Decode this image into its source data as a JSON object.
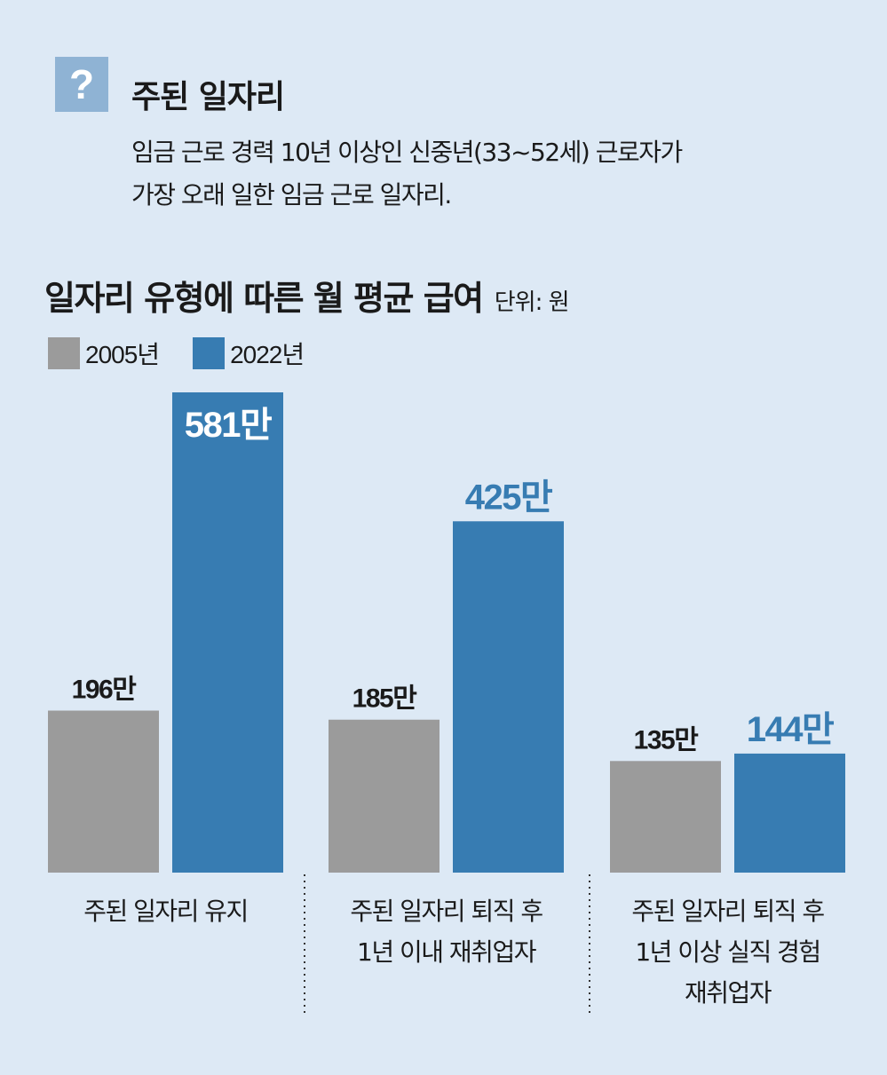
{
  "definition": {
    "icon": "question-mark-icon",
    "icon_glyph": "?",
    "title": "주된 일자리",
    "lines": [
      "임금 근로 경력 10년 이상인 신중년(33~52세) 근로자가",
      "가장 오래 일한 임금 근로 일자리."
    ]
  },
  "chart_data": {
    "type": "bar",
    "title": "일자리 유형에 따른 월 평균 급여",
    "unit_label": "단위: 원",
    "ylim": [
      0,
      5810000
    ],
    "grid": false,
    "legend_placement": "top-left",
    "categories": [
      [
        "주된 일자리 유지"
      ],
      [
        "주된 일자리 퇴직 후",
        "1년 이내 재취업자"
      ],
      [
        "주된 일자리 퇴직 후",
        "1년 이상 실직 경험",
        "재취업자"
      ]
    ],
    "series": [
      {
        "name": "2005년",
        "color": "#9b9b9b",
        "label_color": "#1a1a1a",
        "values": [
          1960000,
          1850000,
          1350000
        ],
        "labels": [
          "196만",
          "185만",
          "135만"
        ]
      },
      {
        "name": "2022년",
        "color": "#377cb2",
        "label_color": "#377cb2",
        "values": [
          5810000,
          4250000,
          1440000
        ],
        "labels": [
          "581만",
          "425만",
          "144만"
        ]
      }
    ],
    "separator_style": "dotted"
  }
}
